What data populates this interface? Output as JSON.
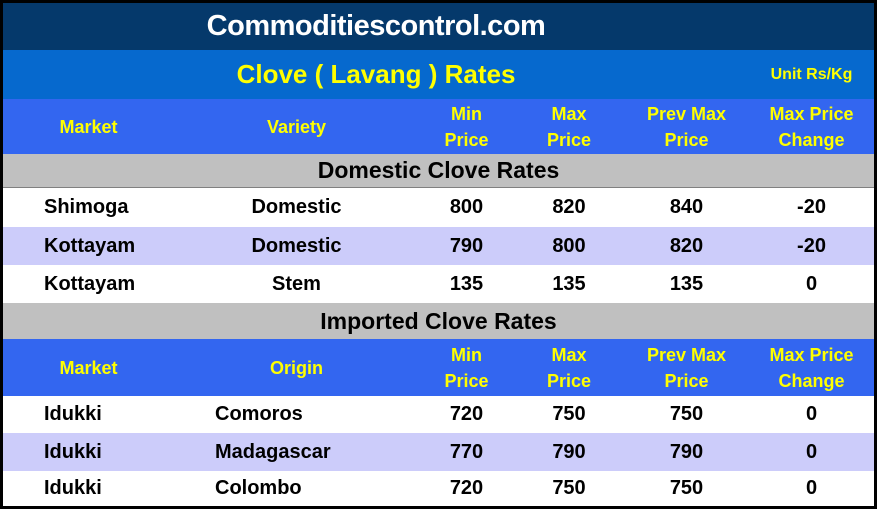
{
  "header": {
    "site_title": "Commoditiescontrol.com"
  },
  "title_bar": {
    "title": "Clove ( Lavang ) Rates",
    "unit": "Unit Rs/Kg"
  },
  "colors": {
    "top_bar_bg": "#05396B",
    "title_bar_bg": "#0669CE",
    "column_header_bg": "#3366F0",
    "section_band_bg": "#C0C0C0",
    "alt_row_bg": "#CCCCFA",
    "header_text": "#FFFF00",
    "site_title_text": "#FFFFFF",
    "body_text": "#000000"
  },
  "sections": [
    {
      "title": "Domestic Clove Rates",
      "headers": [
        "Market",
        "Variety",
        "Min\nPrice",
        "Max\nPrice",
        "Prev Max\nPrice",
        "Max Price\nChange"
      ],
      "rows": [
        [
          "Shimoga",
          "Domestic",
          800,
          820,
          840,
          -20
        ],
        [
          "Kottayam",
          "Domestic",
          790,
          800,
          820,
          -20
        ],
        [
          "Kottayam",
          "Stem",
          135,
          135,
          135,
          0
        ]
      ]
    },
    {
      "title": "Imported Clove Rates",
      "headers": [
        "Market",
        "Origin",
        "Min\nPrice",
        "Max\nPrice",
        "Prev Max\nPrice",
        "Max Price\nChange"
      ],
      "rows": [
        [
          "Idukki",
          "Comoros",
          720,
          750,
          750,
          0
        ],
        [
          "Idukki",
          "Madagascar",
          770,
          790,
          790,
          0
        ],
        [
          "Idukki",
          "Colombo",
          720,
          750,
          750,
          0
        ]
      ]
    }
  ]
}
